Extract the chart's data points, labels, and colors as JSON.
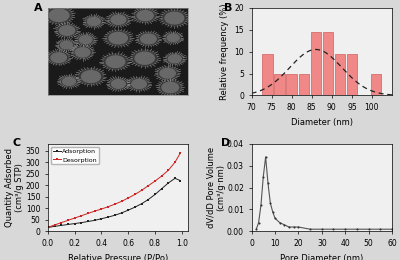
{
  "panel_B": {
    "bins_centers": [
      74,
      77,
      80,
      83,
      86,
      89,
      92,
      95,
      98,
      101
    ],
    "frequencies": [
      9.5,
      5.0,
      5.0,
      5.0,
      14.5,
      14.5,
      9.5,
      9.5,
      0.0,
      5.0
    ],
    "bar_color": "#f08888",
    "bar_edgecolor": "#d06060",
    "dashed_color": "#222222",
    "gauss_mu": 86,
    "gauss_sigma": 6.5,
    "gauss_amp": 10.5,
    "xlabel": "Diameter (nm)",
    "ylabel": "Relative frequency (%)",
    "xlim": [
      70,
      105
    ],
    "ylim": [
      0,
      20
    ],
    "yticks": [
      0,
      5,
      10,
      15,
      20
    ],
    "xticks": [
      70,
      75,
      80,
      85,
      90,
      95,
      100
    ]
  },
  "panel_C": {
    "adsorption_x": [
      0.01,
      0.05,
      0.1,
      0.15,
      0.2,
      0.25,
      0.3,
      0.35,
      0.4,
      0.45,
      0.5,
      0.55,
      0.6,
      0.65,
      0.7,
      0.75,
      0.8,
      0.85,
      0.9,
      0.95,
      0.99
    ],
    "adsorption_y": [
      18,
      22,
      26,
      30,
      34,
      38,
      43,
      48,
      55,
      62,
      70,
      80,
      92,
      105,
      120,
      138,
      160,
      185,
      210,
      230,
      220
    ],
    "desorption_x": [
      0.99,
      0.95,
      0.9,
      0.85,
      0.8,
      0.75,
      0.7,
      0.65,
      0.6,
      0.55,
      0.5,
      0.45,
      0.4,
      0.35,
      0.3,
      0.25,
      0.2,
      0.15,
      0.1,
      0.05,
      0.01
    ],
    "desorption_y": [
      340,
      300,
      265,
      240,
      218,
      198,
      178,
      160,
      145,
      130,
      118,
      107,
      97,
      88,
      78,
      68,
      58,
      48,
      38,
      28,
      20
    ],
    "adsorption_color": "#222222",
    "desorption_color": "#cc2222",
    "xlabel": "Relative Pressure (P/Po)",
    "ylabel": "Quantity Adsorbed\n(cm³/g STP)",
    "xlim": [
      0.0,
      1.05
    ],
    "ylim": [
      0,
      380
    ],
    "yticks": [
      0,
      50,
      100,
      150,
      200,
      250,
      300,
      350
    ],
    "xticks": [
      0.0,
      0.2,
      0.4,
      0.6,
      0.8,
      1.0
    ]
  },
  "panel_D": {
    "pore_x": [
      2,
      3,
      4,
      5,
      6,
      7,
      8,
      9,
      10,
      12,
      14,
      16,
      18,
      20,
      25,
      30,
      35,
      40,
      45,
      50,
      55,
      60
    ],
    "pore_y": [
      0.001,
      0.004,
      0.012,
      0.025,
      0.034,
      0.022,
      0.013,
      0.009,
      0.006,
      0.004,
      0.003,
      0.002,
      0.002,
      0.002,
      0.001,
      0.001,
      0.001,
      0.001,
      0.001,
      0.001,
      0.001,
      0.001
    ],
    "line_color": "#555555",
    "marker_color": "#333333",
    "xlabel": "Pore Diameter (nm)",
    "ylabel": "dV/dD Pore Volume\n(cm³/g·nm)",
    "xlim": [
      0,
      60
    ],
    "ylim": [
      0,
      0.04
    ],
    "yticks": [
      0.0,
      0.01,
      0.02,
      0.03,
      0.04
    ],
    "xticks": [
      0,
      10,
      20,
      30,
      40,
      50,
      60
    ]
  },
  "background_color": "#d8d8d8",
  "axes_bg": "#f0f0f0",
  "panel_labels": [
    "A",
    "B",
    "C",
    "D"
  ],
  "label_fontsize": 8,
  "tick_fontsize": 5.5,
  "axis_label_fontsize": 6
}
